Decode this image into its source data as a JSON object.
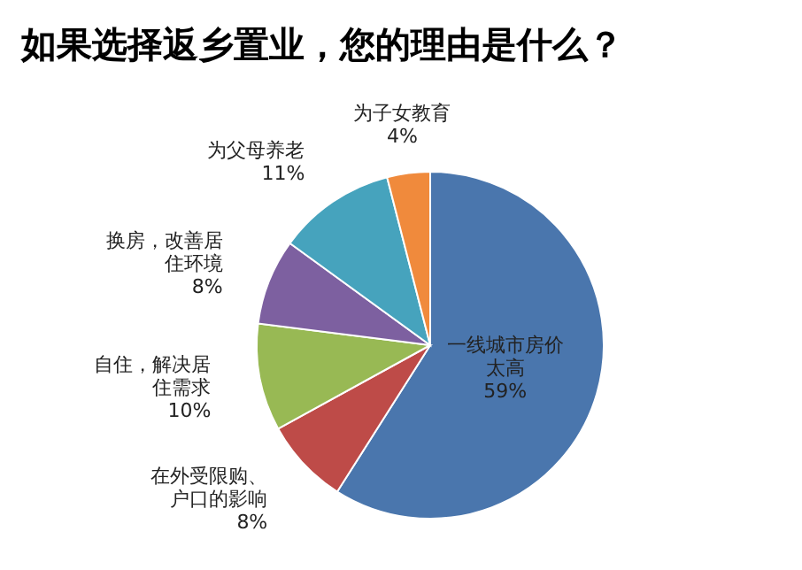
{
  "chart_data": {
    "type": "pie",
    "title": "如果选择返乡置业，您的理由是什么？",
    "categories": [
      "一线城市房价太高",
      "在外受限购、户口的影响",
      "自住，解决居住需求",
      "换房，改善居住环境",
      "为父母养老",
      "为子女教育"
    ],
    "values": [
      59,
      8,
      10,
      8,
      11,
      4
    ],
    "colors": [
      "#4a76ad",
      "#be4b48",
      "#98b954",
      "#7d60a0",
      "#46a3bd",
      "#f08a3c"
    ],
    "value_labels": [
      "59%",
      "8%",
      "10%",
      "8%",
      "11%",
      "4%"
    ]
  }
}
